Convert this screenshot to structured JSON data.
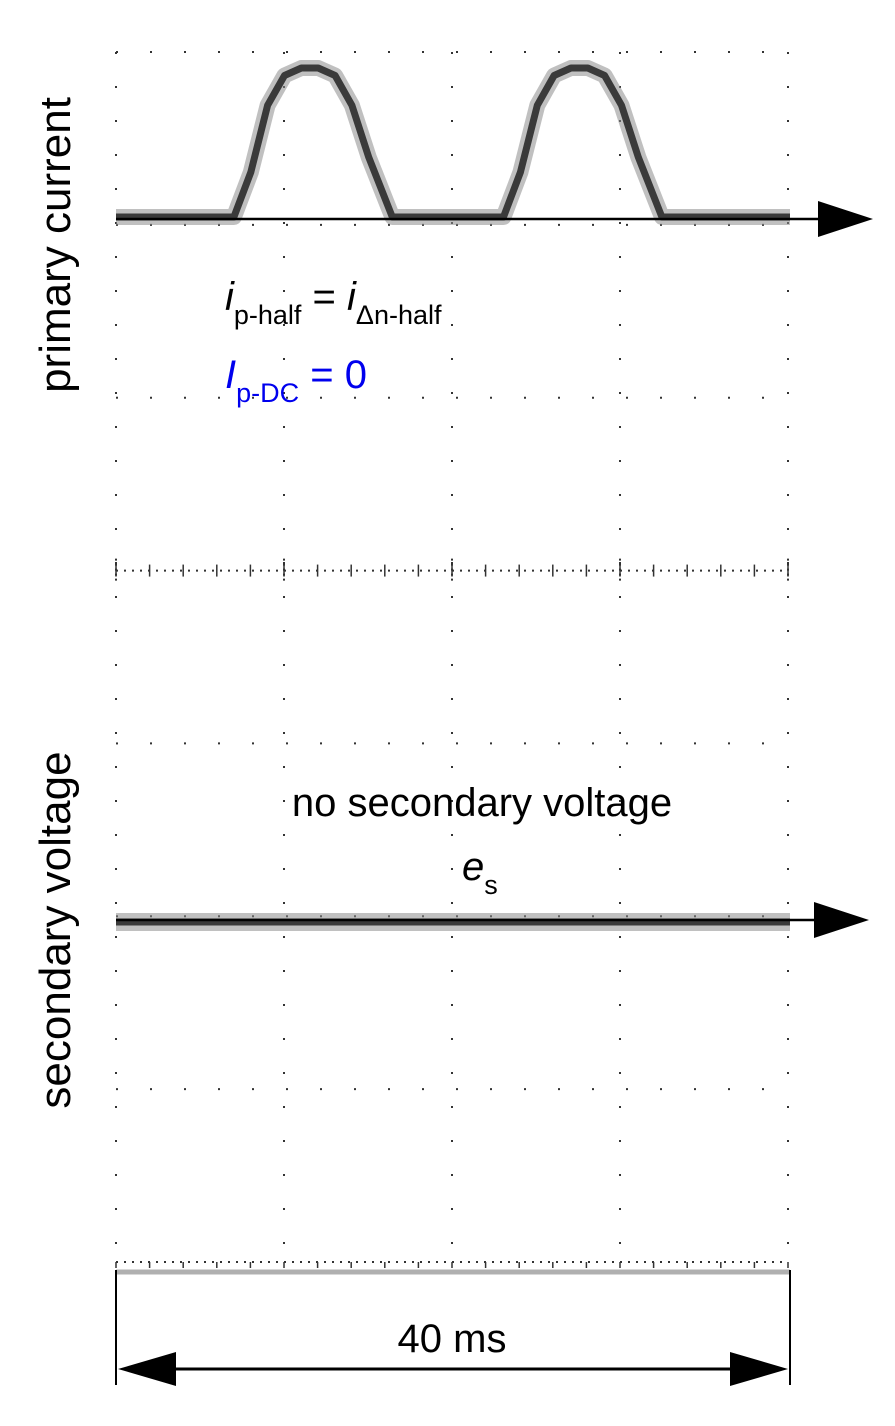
{
  "chart_data": [
    {
      "type": "line",
      "ylabel": "primary current",
      "series": [
        {
          "values": [
            [
              0,
              0
            ],
            [
              7,
              0
            ],
            [
              8,
              0.3
            ],
            [
              9,
              0.75
            ],
            [
              10,
              0.95
            ],
            [
              11,
              1
            ],
            [
              12,
              1
            ],
            [
              13,
              0.95
            ],
            [
              14,
              0.75
            ],
            [
              15,
              0.4
            ],
            [
              16.4,
              0
            ],
            [
              23,
              0
            ],
            [
              24,
              0.3
            ],
            [
              25,
              0.75
            ],
            [
              26,
              0.95
            ],
            [
              27,
              1
            ],
            [
              28,
              1
            ],
            [
              29,
              0.95
            ],
            [
              30,
              0.75
            ],
            [
              31,
              0.4
            ],
            [
              32.4,
              0
            ],
            [
              40,
              0
            ]
          ]
        }
      ],
      "annotations": [
        {
          "symbol": "i",
          "sub": "p-half",
          "eq": " = ",
          "symbol2": "i",
          "sub2": "Δn-half"
        },
        {
          "symbol": "I",
          "sub": "p-DC",
          "eq": " = 0",
          "color": "#0000ee"
        }
      ]
    },
    {
      "type": "line",
      "ylabel": "secondary voltage",
      "series": [
        {
          "values": [
            [
              0,
              0
            ],
            [
              40,
              0
            ]
          ]
        }
      ],
      "annotations": [
        {
          "text": "no secondary voltage"
        },
        {
          "symbol": "e",
          "sub": "s"
        }
      ]
    }
  ],
  "time_span": {
    "label": "40 ms"
  },
  "colors": {
    "trace": "#3a3a3a",
    "trace_noise": "#8c8c8c",
    "grid": "#333333",
    "accent": "#0000ee"
  }
}
